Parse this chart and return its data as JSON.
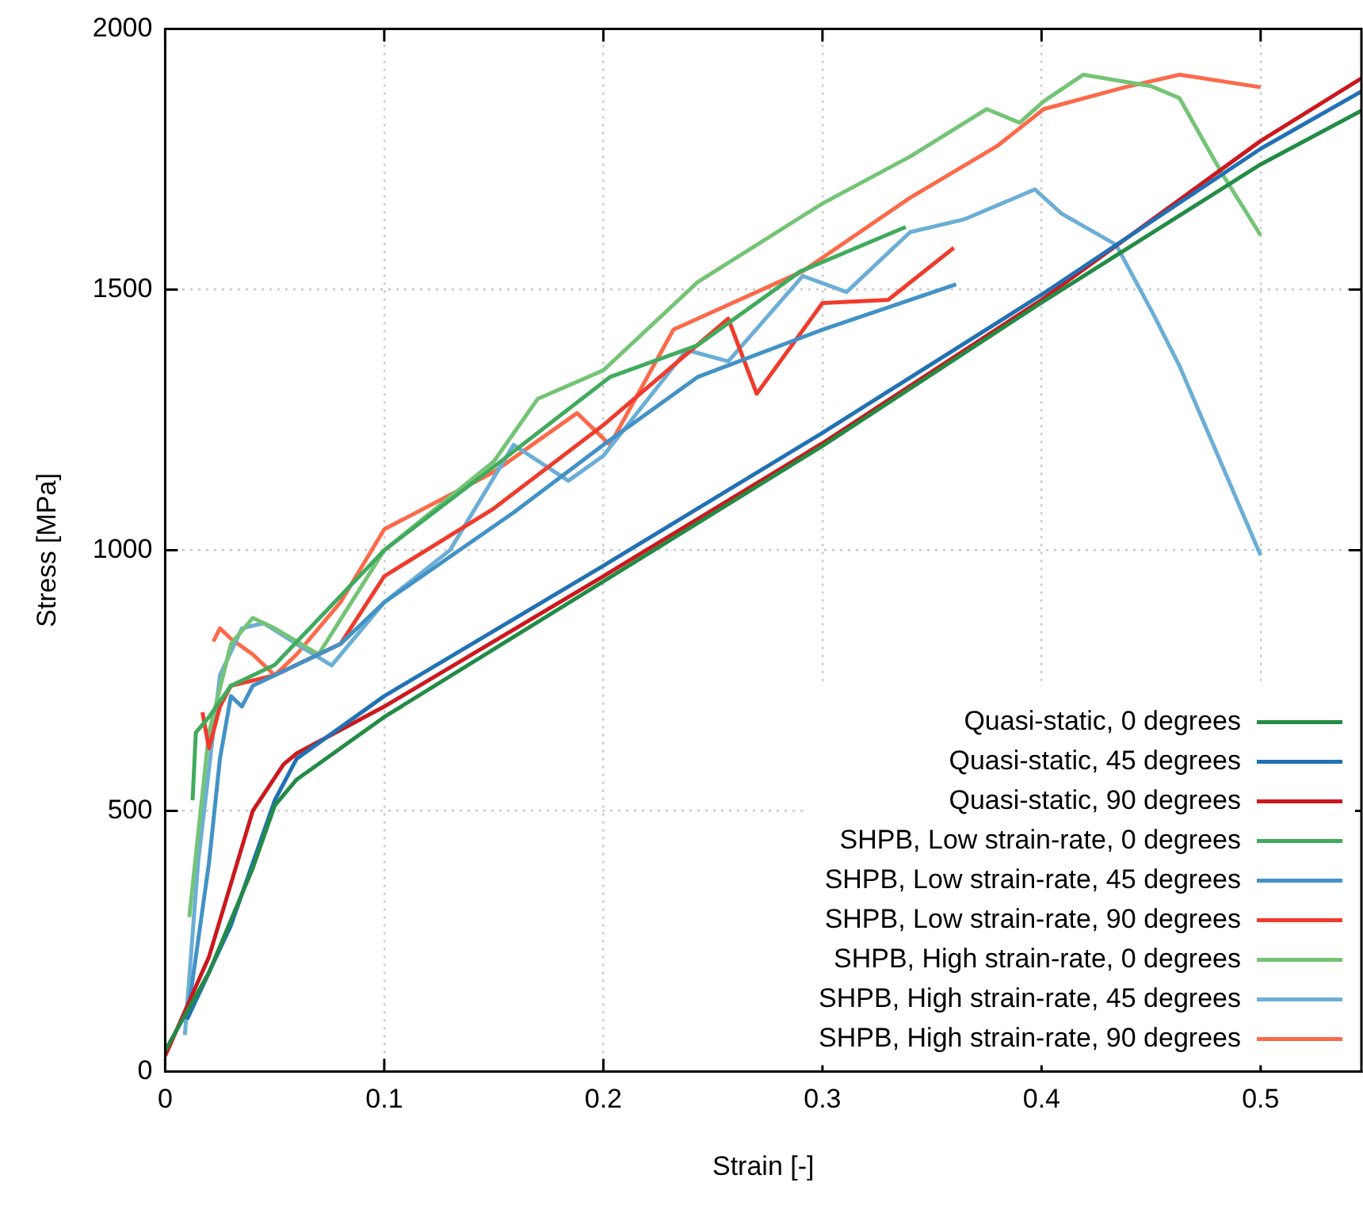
{
  "chart_data": {
    "type": "line",
    "xlabel": "Strain [-]",
    "ylabel": "Stress [MPa]",
    "xlim": [
      0,
      0.546
    ],
    "ylim": [
      0,
      2000
    ],
    "xticks": [
      0,
      0.1,
      0.2,
      0.3,
      0.4,
      0.5
    ],
    "yticks": [
      0,
      500,
      1000,
      1500,
      2000
    ],
    "grid": true,
    "legend": "bottom right",
    "marker": "none",
    "line_style": "solid",
    "series": [
      {
        "name": "Quasi-static, 0 degrees",
        "color": "#238b45",
        "x": [
          0,
          0.02,
          0.04,
          0.05,
          0.06,
          0.08,
          0.1,
          0.2,
          0.3,
          0.4,
          0.5,
          0.546
        ],
        "values": [
          40,
          190,
          390,
          510,
          560,
          620,
          680,
          940,
          1200,
          1475,
          1740,
          1843
        ]
      },
      {
        "name": "Quasi-static, 45 degrees",
        "color": "#2171b5",
        "x": [
          0.01,
          0.03,
          0.05,
          0.06,
          0.07,
          0.1,
          0.2,
          0.3,
          0.4,
          0.5,
          0.546
        ],
        "values": [
          100,
          280,
          520,
          600,
          630,
          720,
          970,
          1225,
          1490,
          1770,
          1880
        ]
      },
      {
        "name": "Quasi-static, 90 degrees",
        "color": "#cb181d",
        "x": [
          0,
          0.02,
          0.04,
          0.054,
          0.06,
          0.1,
          0.2,
          0.3,
          0.4,
          0.5,
          0.546
        ],
        "values": [
          30,
          220,
          500,
          589,
          610,
          700,
          950,
          1205,
          1480,
          1785,
          1905
        ]
      },
      {
        "name": "SHPB, Low strain-rate, 0 degrees",
        "color": "#41ab5d",
        "x": [
          0.0125,
          0.014,
          0.02,
          0.03,
          0.05,
          0.1,
          0.15,
          0.203,
          0.243,
          0.29,
          0.338
        ],
        "values": [
          520,
          650,
          680,
          740,
          780,
          1000,
          1160,
          1332,
          1393,
          1535,
          1620
        ]
      },
      {
        "name": "SHPB, Low strain-rate, 45 degrees",
        "color": "#4292c6",
        "x": [
          0.01,
          0.02,
          0.025,
          0.03,
          0.035,
          0.04,
          0.06,
          0.08,
          0.1,
          0.159,
          0.2,
          0.243,
          0.3,
          0.361
        ],
        "values": [
          100,
          400,
          600,
          720,
          700,
          740,
          780,
          820,
          900,
          1072,
          1202,
          1332,
          1423,
          1510
        ]
      },
      {
        "name": "SHPB, Low strain-rate, 90 degrees",
        "color": "#ef3b2c",
        "x": [
          0.017,
          0.02,
          0.025,
          0.03,
          0.05,
          0.08,
          0.1,
          0.15,
          0.2,
          0.257,
          0.27,
          0.3,
          0.33,
          0.36
        ],
        "values": [
          689,
          620,
          700,
          740,
          760,
          820,
          950,
          1080,
          1240,
          1444,
          1300,
          1474,
          1480,
          1580
        ]
      },
      {
        "name": "SHPB, High strain-rate, 0 degrees",
        "color": "#74c476",
        "x": [
          0.011,
          0.02,
          0.03,
          0.04,
          0.05,
          0.07,
          0.1,
          0.15,
          0.17,
          0.2,
          0.243,
          0.3,
          0.34,
          0.375,
          0.39,
          0.401,
          0.419,
          0.45,
          0.463,
          0.482,
          0.5
        ],
        "values": [
          296,
          650,
          820,
          870,
          850,
          800,
          1000,
          1170,
          1290,
          1345,
          1514,
          1665,
          1755,
          1846,
          1820,
          1861,
          1912,
          1890,
          1867,
          1725,
          1604
        ]
      },
      {
        "name": "SHPB, High strain-rate, 45 degrees",
        "color": "#6baed6",
        "x": [
          0.009,
          0.015,
          0.025,
          0.035,
          0.045,
          0.06,
          0.076,
          0.1,
          0.13,
          0.159,
          0.184,
          0.2,
          0.238,
          0.257,
          0.291,
          0.311,
          0.34,
          0.365,
          0.397,
          0.409,
          0.434,
          0.451,
          0.463,
          0.5
        ],
        "values": [
          70,
          400,
          760,
          850,
          860,
          820,
          779,
          900,
          1000,
          1202,
          1133,
          1181,
          1384,
          1362,
          1526,
          1495,
          1610,
          1635,
          1692,
          1646,
          1586,
          1453,
          1353,
          990
        ]
      },
      {
        "name": "SHPB, High strain-rate, 90 degrees",
        "color": "#fb6a4a",
        "x": [
          0.022,
          0.025,
          0.03,
          0.04,
          0.05,
          0.06,
          0.08,
          0.1,
          0.15,
          0.188,
          0.203,
          0.232,
          0.291,
          0.34,
          0.38,
          0.401,
          0.438,
          0.463,
          0.5
        ],
        "values": [
          825,
          850,
          830,
          800,
          760,
          800,
          900,
          1040,
          1150,
          1263,
          1202,
          1423,
          1535,
          1676,
          1776,
          1846,
          1888,
          1912,
          1888
        ]
      }
    ]
  }
}
